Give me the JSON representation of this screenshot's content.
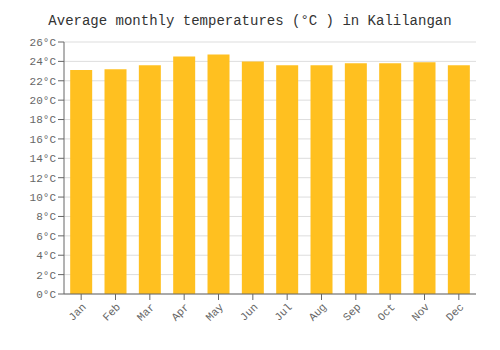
{
  "chart_data": {
    "type": "bar",
    "title": "Average monthly temperatures (°C ) in Kalilangan",
    "categories": [
      "Jan",
      "Feb",
      "Mar",
      "Apr",
      "May",
      "Jun",
      "Jul",
      "Aug",
      "Sep",
      "Oct",
      "Nov",
      "Dec"
    ],
    "values": [
      23.1,
      23.2,
      23.6,
      24.5,
      24.7,
      24.0,
      23.6,
      23.6,
      23.8,
      23.8,
      23.9,
      23.6
    ],
    "color": "#FFC020",
    "ylim": [
      0,
      26
    ],
    "yticks": [
      {
        "value": 0,
        "label": "0°C"
      },
      {
        "value": 2,
        "label": "2°C"
      },
      {
        "value": 4,
        "label": "4°C"
      },
      {
        "value": 6,
        "label": "6°C"
      },
      {
        "value": 8,
        "label": "8°C"
      },
      {
        "value": 10,
        "label": "10°C"
      },
      {
        "value": 12,
        "label": "12°C"
      },
      {
        "value": 14,
        "label": "14°C"
      },
      {
        "value": 16,
        "label": "16°C"
      },
      {
        "value": 18,
        "label": "18°C"
      },
      {
        "value": 20,
        "label": "20°C"
      },
      {
        "value": 22,
        "label": "22°C"
      },
      {
        "value": 24,
        "label": "24°C"
      },
      {
        "value": 26,
        "label": "26°C"
      }
    ],
    "grid": true
  }
}
